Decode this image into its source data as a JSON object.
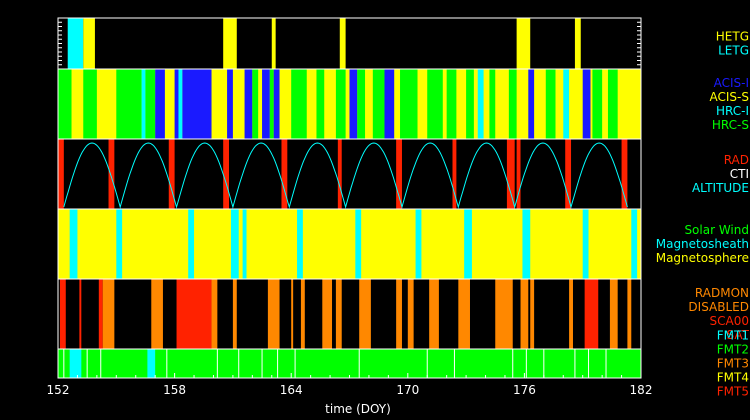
{
  "chart_data": {
    "type": "timeline",
    "xlabel": "time (DOY)",
    "xlim": [
      152,
      182
    ],
    "x_ticks": [
      152,
      158,
      164,
      170,
      176,
      182
    ],
    "colors": {
      "yellow": "#ffff00",
      "cyan": "#00ffff",
      "blue": "#1a1aff",
      "green": "#00ff00",
      "red": "#ff2200",
      "orange": "#ff8800",
      "white": "#ffffff",
      "black": "#000000"
    },
    "panels": [
      {
        "name": "grating",
        "legend": [
          {
            "text": "HETG",
            "color": "#ffff00"
          },
          {
            "text": "LETG",
            "color": "#00ffff"
          }
        ],
        "intervals": [
          {
            "start": 152.5,
            "end": 153.3,
            "color": "#00ffff"
          },
          {
            "start": 153.3,
            "end": 153.9,
            "color": "#ffff00"
          },
          {
            "start": 160.5,
            "end": 161.2,
            "color": "#ffff00"
          },
          {
            "start": 163.0,
            "end": 163.2,
            "color": "#ffff00"
          },
          {
            "start": 166.5,
            "end": 166.8,
            "color": "#ffff00"
          },
          {
            "start": 175.6,
            "end": 176.3,
            "color": "#ffff00"
          },
          {
            "start": 178.6,
            "end": 178.9,
            "color": "#ffff00"
          }
        ]
      },
      {
        "name": "instrument",
        "legend": [
          {
            "text": "ACIS-I",
            "color": "#1a1aff"
          },
          {
            "text": "ACIS-S",
            "color": "#ffff00"
          },
          {
            "text": "HRC-I",
            "color": "#00ffff"
          },
          {
            "text": "HRC-S",
            "color": "#00ff00"
          }
        ],
        "background": "#ffff00",
        "intervals": [
          {
            "start": 152.0,
            "end": 152.7,
            "color": "#00ff00"
          },
          {
            "start": 152.7,
            "end": 153.3,
            "color": "#ffff00"
          },
          {
            "start": 153.3,
            "end": 154.0,
            "color": "#00ff00"
          },
          {
            "start": 155.0,
            "end": 156.3,
            "color": "#00ff00"
          },
          {
            "start": 156.3,
            "end": 156.5,
            "color": "#00ffff"
          },
          {
            "start": 156.5,
            "end": 157.0,
            "color": "#00ff00"
          },
          {
            "start": 157.0,
            "end": 157.5,
            "color": "#1a1aff"
          },
          {
            "start": 158.0,
            "end": 158.2,
            "color": "#1a1aff"
          },
          {
            "start": 158.2,
            "end": 158.4,
            "color": "#00ffff"
          },
          {
            "start": 158.4,
            "end": 159.9,
            "color": "#1a1aff"
          },
          {
            "start": 160.7,
            "end": 161.0,
            "color": "#1a1aff"
          },
          {
            "start": 161.6,
            "end": 162.0,
            "color": "#1a1aff"
          },
          {
            "start": 162.0,
            "end": 162.3,
            "color": "#00ff00"
          },
          {
            "start": 162.5,
            "end": 162.9,
            "color": "#1a1aff"
          },
          {
            "start": 162.9,
            "end": 163.1,
            "color": "#00ff00"
          },
          {
            "start": 163.1,
            "end": 163.4,
            "color": "#1a1aff"
          },
          {
            "start": 164.0,
            "end": 164.8,
            "color": "#00ff00"
          },
          {
            "start": 165.3,
            "end": 165.7,
            "color": "#00ff00"
          },
          {
            "start": 166.3,
            "end": 166.8,
            "color": "#00ff00"
          },
          {
            "start": 167.0,
            "end": 167.4,
            "color": "#1a1aff"
          },
          {
            "start": 167.4,
            "end": 167.8,
            "color": "#00ff00"
          },
          {
            "start": 168.2,
            "end": 168.8,
            "color": "#00ff00"
          },
          {
            "start": 168.8,
            "end": 169.3,
            "color": "#1a1aff"
          },
          {
            "start": 169.6,
            "end": 170.5,
            "color": "#00ff00"
          },
          {
            "start": 171.0,
            "end": 171.8,
            "color": "#00ff00"
          },
          {
            "start": 172.0,
            "end": 172.5,
            "color": "#00ff00"
          },
          {
            "start": 173.0,
            "end": 173.4,
            "color": "#00ff00"
          },
          {
            "start": 173.6,
            "end": 173.9,
            "color": "#00ffff"
          },
          {
            "start": 174.2,
            "end": 174.5,
            "color": "#00ff00"
          },
          {
            "start": 175.2,
            "end": 175.6,
            "color": "#00ff00"
          },
          {
            "start": 176.2,
            "end": 176.5,
            "color": "#1a1aff"
          },
          {
            "start": 177.1,
            "end": 177.6,
            "color": "#00ff00"
          },
          {
            "start": 178.0,
            "end": 178.3,
            "color": "#00ffff"
          },
          {
            "start": 179.0,
            "end": 179.4,
            "color": "#1a1aff"
          },
          {
            "start": 179.5,
            "end": 180.0,
            "color": "#00ff00"
          },
          {
            "start": 180.3,
            "end": 180.8,
            "color": "#00ff00"
          }
        ]
      },
      {
        "name": "radiation",
        "legend": [
          {
            "text": "RAD",
            "color": "#ff2200"
          },
          {
            "text": "CTI",
            "color": "#ffffff"
          },
          {
            "text": "ALTITUDE",
            "color": "#00ffff"
          }
        ],
        "intervals": [
          {
            "start": 152.0,
            "end": 152.3,
            "color": "#ff2200"
          },
          {
            "start": 154.6,
            "end": 154.9,
            "color": "#ff2200"
          },
          {
            "start": 157.7,
            "end": 158.0,
            "color": "#ff2200"
          },
          {
            "start": 160.5,
            "end": 160.8,
            "color": "#ff2200"
          },
          {
            "start": 163.5,
            "end": 163.8,
            "color": "#ff2200"
          },
          {
            "start": 166.4,
            "end": 166.6,
            "color": "#ff2200"
          },
          {
            "start": 169.4,
            "end": 169.7,
            "color": "#ff2200"
          },
          {
            "start": 172.3,
            "end": 172.5,
            "color": "#ff2200"
          },
          {
            "start": 175.1,
            "end": 175.5,
            "color": "#ff2200"
          },
          {
            "start": 175.6,
            "end": 175.8,
            "color": "#ff2200"
          },
          {
            "start": 178.1,
            "end": 178.4,
            "color": "#ff2200"
          },
          {
            "start": 181.0,
            "end": 181.3,
            "color": "#ff2200"
          }
        ],
        "altitude_minima_doy": [
          152.3,
          155.2,
          158.1,
          161.0,
          163.9,
          166.8,
          169.7,
          172.6,
          175.5,
          178.4,
          181.3
        ],
        "altitude_color": "#00ffff"
      },
      {
        "name": "region",
        "legend": [
          {
            "text": "Solar Wind",
            "color": "#00ff00"
          },
          {
            "text": "Magnetosheath",
            "color": "#00ffff"
          },
          {
            "text": "Magnetosphere",
            "color": "#ffff00"
          }
        ],
        "background": "#ffff00",
        "intervals": [
          {
            "start": 152.6,
            "end": 153.0,
            "color": "#00ffff"
          },
          {
            "start": 155.0,
            "end": 155.3,
            "color": "#00ffff"
          },
          {
            "start": 158.7,
            "end": 159.0,
            "color": "#00ffff"
          },
          {
            "start": 160.9,
            "end": 161.3,
            "color": "#00ffff"
          },
          {
            "start": 161.5,
            "end": 161.7,
            "color": "#00ffff"
          },
          {
            "start": 164.3,
            "end": 164.6,
            "color": "#00ffff"
          },
          {
            "start": 167.3,
            "end": 167.6,
            "color": "#00ffff"
          },
          {
            "start": 170.4,
            "end": 170.7,
            "color": "#00ffff"
          },
          {
            "start": 172.9,
            "end": 173.3,
            "color": "#00ffff"
          },
          {
            "start": 175.9,
            "end": 176.3,
            "color": "#00ffff"
          },
          {
            "start": 179.0,
            "end": 179.3,
            "color": "#00ffff"
          },
          {
            "start": 181.5,
            "end": 181.8,
            "color": "#00ffff"
          }
        ]
      },
      {
        "name": "radmon",
        "legend": [
          {
            "text": "RADMON",
            "color": "#ff8800"
          },
          {
            "text": "DISABLED",
            "color": "#ff8800"
          },
          {
            "text": "SCA00",
            "color": "#ff2200"
          },
          {
            "text": "SAT",
            "color": "#ff2200"
          }
        ],
        "intervals": [
          {
            "start": 152.1,
            "end": 152.4,
            "color": "#ff2200"
          },
          {
            "start": 153.1,
            "end": 153.2,
            "color": "#ff2200"
          },
          {
            "start": 154.1,
            "end": 154.3,
            "color": "#ff2200"
          },
          {
            "start": 154.3,
            "end": 154.9,
            "color": "#ff8800"
          },
          {
            "start": 156.8,
            "end": 157.4,
            "color": "#ff8800"
          },
          {
            "start": 158.1,
            "end": 159.9,
            "color": "#ff2200"
          },
          {
            "start": 159.9,
            "end": 160.2,
            "color": "#ff8800"
          },
          {
            "start": 161.0,
            "end": 161.2,
            "color": "#ff8800"
          },
          {
            "start": 162.8,
            "end": 163.4,
            "color": "#ff8800"
          },
          {
            "start": 164.0,
            "end": 164.1,
            "color": "#ff8800"
          },
          {
            "start": 164.5,
            "end": 164.7,
            "color": "#ff8800"
          },
          {
            "start": 165.6,
            "end": 166.1,
            "color": "#ff8800"
          },
          {
            "start": 166.3,
            "end": 166.6,
            "color": "#ff8800"
          },
          {
            "start": 167.5,
            "end": 168.1,
            "color": "#ff8800"
          },
          {
            "start": 169.4,
            "end": 169.7,
            "color": "#ff8800"
          },
          {
            "start": 170.0,
            "end": 170.3,
            "color": "#ff8800"
          },
          {
            "start": 171.1,
            "end": 171.6,
            "color": "#ff8800"
          },
          {
            "start": 172.6,
            "end": 173.2,
            "color": "#ff8800"
          },
          {
            "start": 174.5,
            "end": 175.4,
            "color": "#ff8800"
          },
          {
            "start": 175.8,
            "end": 176.2,
            "color": "#ff8800"
          },
          {
            "start": 176.3,
            "end": 176.5,
            "color": "#ff8800"
          },
          {
            "start": 178.3,
            "end": 178.5,
            "color": "#ff8800"
          },
          {
            "start": 179.1,
            "end": 179.8,
            "color": "#ff2200"
          },
          {
            "start": 180.4,
            "end": 180.8,
            "color": "#ff8800"
          },
          {
            "start": 181.3,
            "end": 181.5,
            "color": "#ff8800"
          }
        ]
      },
      {
        "name": "format",
        "legend": [
          {
            "text": "FMT1",
            "color": "#00ffff"
          },
          {
            "text": "FMT2",
            "color": "#00ff00"
          },
          {
            "text": "FMT3",
            "color": "#ff8800"
          },
          {
            "text": "FMT4",
            "color": "#ffff00"
          },
          {
            "text": "FMT5",
            "color": "#ff2200"
          }
        ],
        "background": "#00ff00",
        "intervals": [
          {
            "start": 152.6,
            "end": 153.2,
            "color": "#00ffff"
          },
          {
            "start": 156.6,
            "end": 157.0,
            "color": "#00ffff"
          }
        ],
        "markers": [
          152.3,
          153.5,
          154.2,
          157.6,
          160.2,
          161.3,
          162.5,
          163.3,
          164.2,
          167.5,
          171.0,
          172.4,
          175.4,
          176.1,
          177.0,
          178.6,
          179.3,
          180.2
        ]
      }
    ]
  }
}
